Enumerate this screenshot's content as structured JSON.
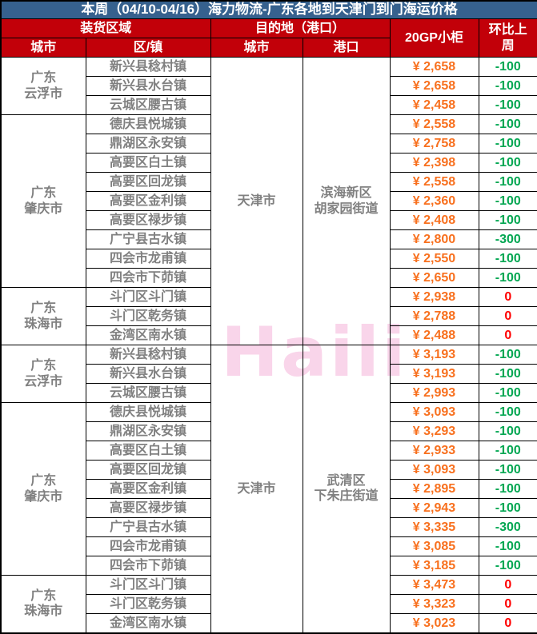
{
  "title": "本周（04/10-04/16）海力物流-广东各地到天津门到门海运价格",
  "watermark": "Haili",
  "header": {
    "loading_area": "装货区域",
    "destination": "目的地（港口）",
    "container": "20GP小柜",
    "wow_change": "环比上\n周",
    "city": "城市",
    "district": "区/镇",
    "dest_city": "城市",
    "port": "港口"
  },
  "colors": {
    "title_bg": "#36618e",
    "header_bg": "#c20009",
    "gray_text": "#808080",
    "price_orange": "#f8701e",
    "down_green": "#00a651",
    "zero_red": "#ff0000",
    "watermark_pink": "#f9d5ea"
  },
  "table_data": {
    "type": "table",
    "sections": [
      {
        "dest_city": "天津市",
        "port": "滨海新区\n胡家园街道",
        "groups": [
          {
            "city": "广东\n云浮市",
            "rows": [
              {
                "district": "新兴县稔村镇",
                "price": "¥ 2,658",
                "change": "-100"
              },
              {
                "district": "新兴县水台镇",
                "price": "¥ 2,658",
                "change": "-100"
              },
              {
                "district": "云城区腰古镇",
                "price": "¥ 2,458",
                "change": "-100"
              }
            ]
          },
          {
            "city": "广东\n肇庆市",
            "rows": [
              {
                "district": "德庆县悦城镇",
                "price": "¥ 2,558",
                "change": "-100"
              },
              {
                "district": "鼎湖区永安镇",
                "price": "¥ 2,758",
                "change": "-100"
              },
              {
                "district": "高要区白土镇",
                "price": "¥ 2,398",
                "change": "-100"
              },
              {
                "district": "高要区回龙镇",
                "price": "¥ 2,558",
                "change": "-100"
              },
              {
                "district": "高要区金利镇",
                "price": "¥ 2,360",
                "change": "-100"
              },
              {
                "district": "高要区禄步镇",
                "price": "¥ 2,408",
                "change": "-100"
              },
              {
                "district": "广宁县古水镇",
                "price": "¥ 2,800",
                "change": "-300"
              },
              {
                "district": "四会市龙甫镇",
                "price": "¥ 2,550",
                "change": "-100"
              },
              {
                "district": "四会市下茆镇",
                "price": "¥ 2,650",
                "change": "-100"
              }
            ]
          },
          {
            "city": "广东\n珠海市",
            "rows": [
              {
                "district": "斗门区斗门镇",
                "price": "¥ 2,938",
                "change": "0"
              },
              {
                "district": "斗门区乾务镇",
                "price": "¥ 2,788",
                "change": "0"
              },
              {
                "district": "金湾区南水镇",
                "price": "¥ 2,488",
                "change": "0"
              }
            ]
          }
        ]
      },
      {
        "dest_city": "天津市",
        "port": "武清区\n下朱庄街道",
        "groups": [
          {
            "city": "广东\n云浮市",
            "rows": [
              {
                "district": "新兴县稔村镇",
                "price": "¥ 3,193",
                "change": "-100"
              },
              {
                "district": "新兴县水台镇",
                "price": "¥ 3,193",
                "change": "-100"
              },
              {
                "district": "云城区腰古镇",
                "price": "¥ 2,993",
                "change": "-100"
              }
            ]
          },
          {
            "city": "广东\n肇庆市",
            "rows": [
              {
                "district": "德庆县悦城镇",
                "price": "¥ 3,093",
                "change": "-100"
              },
              {
                "district": "鼎湖区永安镇",
                "price": "¥ 3,293",
                "change": "-100"
              },
              {
                "district": "高要区白土镇",
                "price": "¥ 2,933",
                "change": "-100"
              },
              {
                "district": "高要区回龙镇",
                "price": "¥ 3,093",
                "change": "-100"
              },
              {
                "district": "高要区金利镇",
                "price": "¥ 2,895",
                "change": "-100"
              },
              {
                "district": "高要区禄步镇",
                "price": "¥ 2,943",
                "change": "-100"
              },
              {
                "district": "广宁县古水镇",
                "price": "¥ 3,335",
                "change": "-300"
              },
              {
                "district": "四会市龙甫镇",
                "price": "¥ 3,085",
                "change": "-100"
              },
              {
                "district": "四会市下茆镇",
                "price": "¥ 3,185",
                "change": "-100"
              }
            ]
          },
          {
            "city": "广东\n珠海市",
            "rows": [
              {
                "district": "斗门区斗门镇",
                "price": "¥ 3,473",
                "change": "0"
              },
              {
                "district": "斗门区乾务镇",
                "price": "¥ 3,323",
                "change": "0"
              },
              {
                "district": "金湾区南水镇",
                "price": "¥ 3,023",
                "change": "0"
              }
            ]
          }
        ]
      }
    ]
  }
}
